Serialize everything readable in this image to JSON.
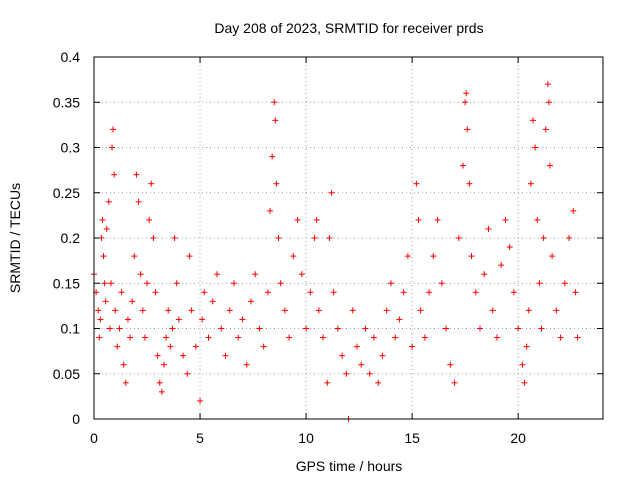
{
  "chart_data": {
    "type": "scatter",
    "title": "Day 208 of 2023, SRMTID for receiver prds",
    "xlabel": "GPS time / hours",
    "ylabel": "SRMTID / TECUs",
    "xlim": [
      0,
      24.0
    ],
    "ylim": [
      0,
      0.4
    ],
    "x_ticks": [
      0,
      5,
      10,
      15,
      20
    ],
    "x_tick_labels": [
      "0",
      "5",
      "10",
      "15",
      "20"
    ],
    "y_ticks": [
      0,
      0.05,
      0.1,
      0.15,
      0.2,
      0.25,
      0.3,
      0.35,
      0.4
    ],
    "y_tick_labels": [
      "0",
      "0.05",
      "0.1",
      "0.15",
      "0.2",
      "0.25",
      "0.3",
      "0.35",
      "0.4"
    ],
    "grid": true,
    "marker": "plus",
    "color": "#ff0000",
    "series": [
      {
        "name": "SRMTID",
        "points": [
          [
            0.0,
            0.16
          ],
          [
            0.1,
            0.14
          ],
          [
            0.2,
            0.12
          ],
          [
            0.25,
            0.09
          ],
          [
            0.3,
            0.11
          ],
          [
            0.35,
            0.2
          ],
          [
            0.4,
            0.22
          ],
          [
            0.45,
            0.18
          ],
          [
            0.5,
            0.15
          ],
          [
            0.55,
            0.13
          ],
          [
            0.6,
            0.21
          ],
          [
            0.7,
            0.24
          ],
          [
            0.75,
            0.1
          ],
          [
            0.8,
            0.15
          ],
          [
            0.85,
            0.3
          ],
          [
            0.9,
            0.32
          ],
          [
            0.95,
            0.27
          ],
          [
            1.0,
            0.12
          ],
          [
            1.1,
            0.08
          ],
          [
            1.2,
            0.1
          ],
          [
            1.3,
            0.14
          ],
          [
            1.4,
            0.06
          ],
          [
            1.5,
            0.04
          ],
          [
            1.6,
            0.11
          ],
          [
            1.7,
            0.09
          ],
          [
            1.8,
            0.13
          ],
          [
            1.9,
            0.18
          ],
          [
            2.0,
            0.27
          ],
          [
            2.1,
            0.24
          ],
          [
            2.2,
            0.16
          ],
          [
            2.3,
            0.12
          ],
          [
            2.4,
            0.09
          ],
          [
            2.5,
            0.15
          ],
          [
            2.6,
            0.22
          ],
          [
            2.7,
            0.26
          ],
          [
            2.8,
            0.2
          ],
          [
            2.9,
            0.14
          ],
          [
            3.0,
            0.07
          ],
          [
            3.1,
            0.04
          ],
          [
            3.2,
            0.03
          ],
          [
            3.3,
            0.06
          ],
          [
            3.4,
            0.09
          ],
          [
            3.5,
            0.12
          ],
          [
            3.6,
            0.08
          ],
          [
            3.7,
            0.1
          ],
          [
            3.8,
            0.2
          ],
          [
            3.9,
            0.15
          ],
          [
            4.0,
            0.11
          ],
          [
            4.2,
            0.07
          ],
          [
            4.4,
            0.05
          ],
          [
            4.5,
            0.18
          ],
          [
            4.6,
            0.12
          ],
          [
            4.8,
            0.08
          ],
          [
            5.0,
            0.02
          ],
          [
            5.1,
            0.11
          ],
          [
            5.2,
            0.14
          ],
          [
            5.4,
            0.09
          ],
          [
            5.6,
            0.13
          ],
          [
            5.8,
            0.16
          ],
          [
            6.0,
            0.1
          ],
          [
            6.2,
            0.07
          ],
          [
            6.4,
            0.12
          ],
          [
            6.6,
            0.15
          ],
          [
            6.8,
            0.09
          ],
          [
            7.0,
            0.11
          ],
          [
            7.2,
            0.06
          ],
          [
            7.4,
            0.13
          ],
          [
            7.6,
            0.16
          ],
          [
            7.8,
            0.1
          ],
          [
            8.0,
            0.08
          ],
          [
            8.2,
            0.14
          ],
          [
            8.3,
            0.23
          ],
          [
            8.4,
            0.29
          ],
          [
            8.5,
            0.35
          ],
          [
            8.55,
            0.33
          ],
          [
            8.6,
            0.26
          ],
          [
            8.7,
            0.2
          ],
          [
            8.8,
            0.15
          ],
          [
            9.0,
            0.12
          ],
          [
            9.2,
            0.09
          ],
          [
            9.4,
            0.18
          ],
          [
            9.6,
            0.22
          ],
          [
            9.8,
            0.16
          ],
          [
            10.0,
            0.1
          ],
          [
            10.2,
            0.14
          ],
          [
            10.4,
            0.2
          ],
          [
            10.5,
            0.22
          ],
          [
            10.6,
            0.12
          ],
          [
            10.8,
            0.09
          ],
          [
            11.0,
            0.04
          ],
          [
            11.1,
            0.2
          ],
          [
            11.2,
            0.25
          ],
          [
            11.3,
            0.14
          ],
          [
            11.5,
            0.1
          ],
          [
            11.7,
            0.07
          ],
          [
            11.9,
            0.05
          ],
          [
            12.0,
            0.0
          ],
          [
            12.2,
            0.12
          ],
          [
            12.4,
            0.08
          ],
          [
            12.6,
            0.06
          ],
          [
            12.8,
            0.1
          ],
          [
            13.0,
            0.05
          ],
          [
            13.2,
            0.09
          ],
          [
            13.4,
            0.04
          ],
          [
            13.6,
            0.07
          ],
          [
            13.8,
            0.12
          ],
          [
            14.0,
            0.15
          ],
          [
            14.2,
            0.09
          ],
          [
            14.4,
            0.11
          ],
          [
            14.6,
            0.14
          ],
          [
            14.8,
            0.18
          ],
          [
            15.0,
            0.08
          ],
          [
            15.2,
            0.26
          ],
          [
            15.3,
            0.22
          ],
          [
            15.4,
            0.12
          ],
          [
            15.6,
            0.09
          ],
          [
            15.8,
            0.14
          ],
          [
            16.0,
            0.18
          ],
          [
            16.2,
            0.22
          ],
          [
            16.4,
            0.15
          ],
          [
            16.6,
            0.1
          ],
          [
            16.8,
            0.06
          ],
          [
            17.0,
            0.04
          ],
          [
            17.2,
            0.2
          ],
          [
            17.4,
            0.28
          ],
          [
            17.5,
            0.35
          ],
          [
            17.55,
            0.36
          ],
          [
            17.6,
            0.32
          ],
          [
            17.7,
            0.26
          ],
          [
            17.8,
            0.18
          ],
          [
            18.0,
            0.14
          ],
          [
            18.2,
            0.1
          ],
          [
            18.4,
            0.16
          ],
          [
            18.6,
            0.21
          ],
          [
            18.8,
            0.12
          ],
          [
            19.0,
            0.09
          ],
          [
            19.2,
            0.17
          ],
          [
            19.4,
            0.22
          ],
          [
            19.6,
            0.19
          ],
          [
            19.8,
            0.14
          ],
          [
            20.0,
            0.1
          ],
          [
            20.2,
            0.06
          ],
          [
            20.3,
            0.04
          ],
          [
            20.4,
            0.08
          ],
          [
            20.5,
            0.12
          ],
          [
            20.6,
            0.26
          ],
          [
            20.7,
            0.33
          ],
          [
            20.8,
            0.3
          ],
          [
            20.9,
            0.22
          ],
          [
            21.0,
            0.15
          ],
          [
            21.1,
            0.1
          ],
          [
            21.2,
            0.2
          ],
          [
            21.3,
            0.32
          ],
          [
            21.4,
            0.37
          ],
          [
            21.45,
            0.35
          ],
          [
            21.5,
            0.28
          ],
          [
            21.6,
            0.18
          ],
          [
            21.8,
            0.12
          ],
          [
            22.0,
            0.09
          ],
          [
            22.2,
            0.15
          ],
          [
            22.4,
            0.2
          ],
          [
            22.6,
            0.23
          ],
          [
            22.7,
            0.14
          ],
          [
            22.8,
            0.09
          ]
        ]
      }
    ]
  }
}
